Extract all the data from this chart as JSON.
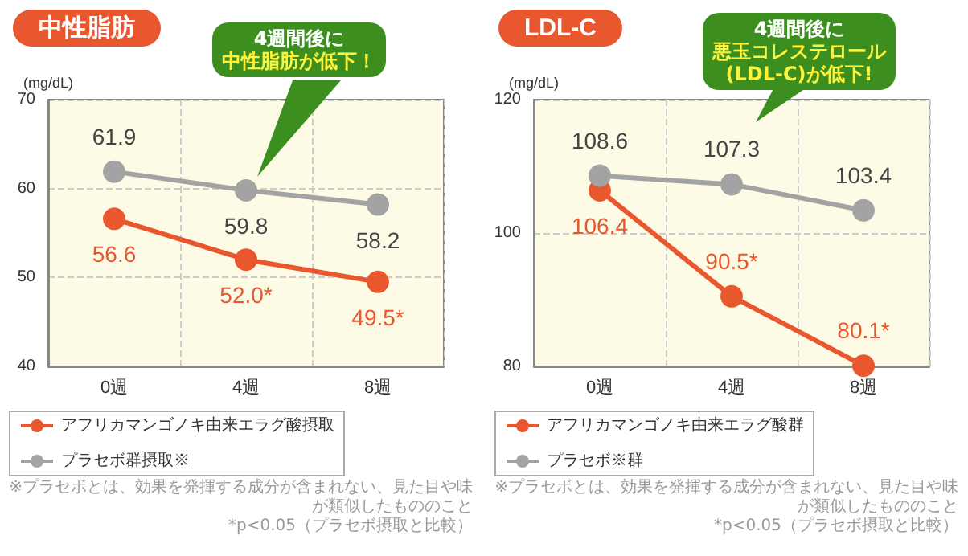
{
  "chart_data": [
    {
      "type": "line",
      "title": "中性脂肪",
      "ylabel": "(mg/dL)",
      "categories": [
        "0週",
        "4週",
        "8週"
      ],
      "ylim": [
        40,
        70
      ],
      "yticks": [
        40,
        50,
        60,
        70
      ],
      "grid": true,
      "legend": "bottom",
      "marker": "circle",
      "line_style": "solid",
      "series": [
        {
          "name": "アフリカマンゴノキ由来エラグ酸摂取",
          "color": "#e8572e",
          "values": [
            56.6,
            52.0,
            49.5
          ],
          "value_labels": [
            "56.6",
            "52.0*",
            "49.5*"
          ]
        },
        {
          "name": "プラセボ群摂取※",
          "color": "#a3a3a3",
          "values": [
            61.9,
            59.8,
            58.2
          ],
          "value_labels": [
            "61.9",
            "59.8",
            "58.2"
          ]
        }
      ],
      "annotations": [
        "4週間後に",
        "中性脂肪が低下！",
        "※プラセボとは、効果を発揮する成分が含まれない、見た目や味が類似したもののこと",
        "*p<0.05（プラセボ摂取と比較）"
      ]
    },
    {
      "type": "line",
      "title": "LDL-C",
      "ylabel": "(mg/dL)",
      "categories": [
        "0週",
        "4週",
        "8週"
      ],
      "ylim": [
        80,
        120
      ],
      "yticks": [
        80,
        100,
        120
      ],
      "grid": true,
      "legend": "bottom",
      "marker": "circle",
      "line_style": "solid",
      "series": [
        {
          "name": "アフリカマンゴノキ由来エラグ酸群",
          "color": "#e8572e",
          "values": [
            106.4,
            90.5,
            80.1
          ],
          "value_labels": [
            "106.4",
            "90.5*",
            "80.1*"
          ]
        },
        {
          "name": "プラセボ※群",
          "color": "#a3a3a3",
          "values": [
            108.6,
            107.3,
            103.4
          ],
          "value_labels": [
            "108.6",
            "107.3",
            "103.4"
          ]
        }
      ],
      "annotations": [
        "4週間後に",
        "悪玉コレステロール",
        "(LDL-C)が低下!",
        "※プラセボとは、効果を発揮する成分が含まれない、見た目や味が類似したもののこと",
        "*p<0.05（プラセボ摂取と比較）"
      ]
    }
  ]
}
